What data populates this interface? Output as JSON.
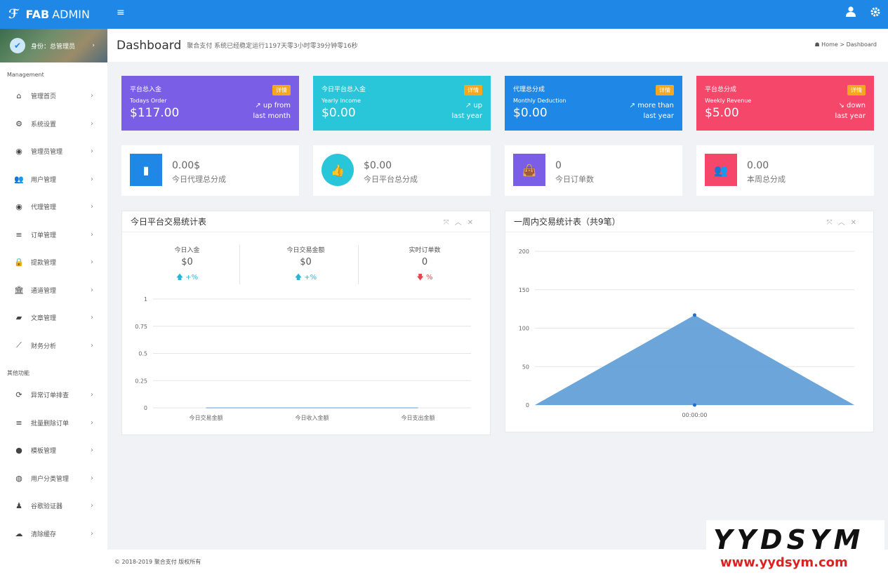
{
  "brand": {
    "bold": "FAB",
    "thin": "ADMIN"
  },
  "topbar": {
    "menu_icon": "hamburger-icon",
    "user_icon": "user-icon",
    "gear_icon": "gear-icon"
  },
  "sidebar": {
    "profile_label": "身份：总管理员",
    "section1": "Management",
    "section2": "其他功能",
    "items1": [
      {
        "label": "管理首页",
        "icon": "home-icon"
      },
      {
        "label": "系统设置",
        "icon": "cogs-icon"
      },
      {
        "label": "管理员管理",
        "icon": "user-circle-icon"
      },
      {
        "label": "用户管理",
        "icon": "users-icon"
      },
      {
        "label": "代理管理",
        "icon": "user-circle-icon"
      },
      {
        "label": "订单管理",
        "icon": "list-icon"
      },
      {
        "label": "提款管理",
        "icon": "lock-icon"
      },
      {
        "label": "通道管理",
        "icon": "bank-icon"
      },
      {
        "label": "文章管理",
        "icon": "book-icon"
      },
      {
        "label": "财务分析",
        "icon": "line-chart-icon"
      }
    ],
    "items2": [
      {
        "label": "异常订单排查",
        "icon": "refresh-icon"
      },
      {
        "label": "批量删除订单",
        "icon": "list-icon"
      },
      {
        "label": "模板管理",
        "icon": "apple-icon"
      },
      {
        "label": "用户分类管理",
        "icon": "wechat-icon"
      },
      {
        "label": "谷歌验证器",
        "icon": "user-icon"
      },
      {
        "label": "清除缓存",
        "icon": "cloud-icon"
      }
    ]
  },
  "header": {
    "title": "Dashboard",
    "subtitle": "聚合支付 系统已经稳定运行1197天零3小时零39分钟零16秒",
    "crumb_home": "Home",
    "crumb_sep": ">",
    "crumb_current": "Dashboard"
  },
  "stats": [
    {
      "title": "平台总入金",
      "sub": "Todays Order",
      "value": "$117.00",
      "badge": "详情",
      "trend1": "up from",
      "trend2": "last month",
      "color": "#7a5ee6"
    },
    {
      "title": "今日平台总入金",
      "sub": "Yearly Income",
      "value": "$0.00",
      "badge": "详情",
      "trend1": "up",
      "trend2": "last year",
      "color": "#29c6da"
    },
    {
      "title": "代理总分成",
      "sub": "Monthly Deduction",
      "value": "$0.00",
      "badge": "详情",
      "trend1": "more than",
      "trend2": "last year",
      "color": "#1f87e5"
    },
    {
      "title": "平台总分成",
      "sub": "Weekly Revenue",
      "value": "$5.00",
      "badge": "详情",
      "trend1": "down",
      "trend2": "last year",
      "color": "#f5476a"
    }
  ],
  "minis": [
    {
      "value": "0.00$",
      "label": "今日代理总分成",
      "icon": "bar-chart-icon",
      "color": "#1f87e5"
    },
    {
      "value": "$0.00",
      "label": "今日平台总分成",
      "icon": "thumbs-up-icon",
      "color": "#29c6da"
    },
    {
      "value": "0",
      "label": "今日订单数",
      "icon": "shopping-bag-icon",
      "color": "#7a5ee6"
    },
    {
      "value": "0.00",
      "label": "本周总分成",
      "icon": "users-icon",
      "color": "#f5476a"
    }
  ],
  "panel1": {
    "title": "今日平台交易统计表",
    "kpis": [
      {
        "label": "今日入金",
        "value": "$0",
        "change": "+%",
        "dir": "up"
      },
      {
        "label": "今日交易金额",
        "value": "$0",
        "change": "+%",
        "dir": "up"
      },
      {
        "label": "实时订单数",
        "value": "0",
        "change": "%",
        "dir": "down"
      }
    ]
  },
  "panel2": {
    "title": "一周内交易统计表（共9笔）"
  },
  "chart_data": [
    {
      "type": "line",
      "title": "",
      "categories": [
        "今日交易金额",
        "今日收入金额",
        "今日支出金额"
      ],
      "series": [
        {
          "values": [
            0,
            0,
            0
          ]
        }
      ],
      "yticks": [
        "0",
        "0.25",
        "0.5",
        "0.75",
        "1"
      ],
      "ylim": [
        0,
        1
      ],
      "grid": true
    },
    {
      "type": "area",
      "title": "",
      "x": [
        "",
        "00:00:00",
        ""
      ],
      "series": [
        {
          "values": [
            0,
            117,
            0
          ]
        }
      ],
      "yticks": [
        "0",
        "50",
        "100",
        "150",
        "200"
      ],
      "ylim": [
        0,
        200
      ],
      "grid": true,
      "color": "#5b9bd5"
    }
  ],
  "footer": {
    "text": "© 2018-2019 聚合支付 版权所有"
  },
  "watermark": {
    "line1": "YYDSYM",
    "line2": "www.yydsym.com"
  }
}
